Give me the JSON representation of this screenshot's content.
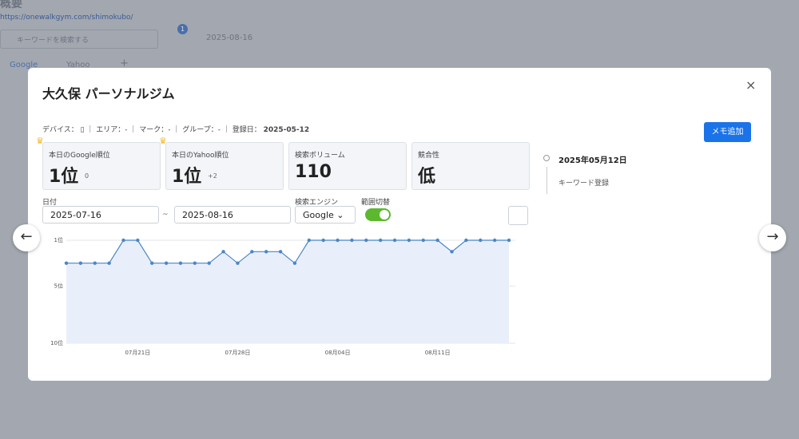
{
  "background": {
    "title": "概要",
    "url": "https://onewalkgym.com/shimokubo/",
    "search_placeholder": "キーワードを検索する",
    "filter_badge": "1",
    "date": "2025-08-16",
    "tabs": [
      "Google",
      "Yahoo",
      "+"
    ]
  },
  "modal": {
    "title": "大久保 パーソナルジム",
    "info": {
      "device_label": "デバイス：",
      "area": "エリア：-",
      "mark": "マーク：-",
      "group": "グループ：-",
      "registered_label": "登録日：",
      "registered_date": "2025-05-12"
    },
    "memo_button": "メモ追加",
    "cards": [
      {
        "label": "本日のGoogle順位",
        "value": "1位",
        "change": "0"
      },
      {
        "label": "本日のYahoo順位",
        "value": "1位",
        "change": "+2"
      },
      {
        "label": "検索ボリューム",
        "value": 110
      },
      {
        "label": "競合性",
        "value": "低"
      }
    ],
    "filters": {
      "date_label": "日付",
      "start": "2025-07-16",
      "separator": "~",
      "end": "2025-08-16",
      "engine_label": "検索エンジン",
      "engine": "Google",
      "range_label": "範囲切替"
    },
    "timeline": [
      {
        "date": "2025年05月12日",
        "event": "キーワード登録"
      }
    ]
  },
  "chart_data": {
    "type": "line",
    "color": "#4a86c8",
    "area_color": "#e9effa",
    "y_inverted": true,
    "grid": true,
    "categories": [
      null,
      null,
      null,
      null,
      null,
      "07月21日",
      null,
      null,
      null,
      null,
      null,
      null,
      "07月28日",
      null,
      null,
      null,
      null,
      null,
      null,
      "08月04日",
      null,
      null,
      null,
      null,
      null,
      null,
      "08月11日",
      null,
      null,
      null,
      null,
      null
    ],
    "values": [
      3,
      3,
      3,
      3,
      1,
      1,
      3,
      3,
      3,
      3,
      3,
      2,
      3,
      2,
      2,
      2,
      3,
      1,
      1,
      1,
      1,
      1,
      1,
      1,
      1,
      1,
      1,
      2,
      1,
      1,
      1,
      1
    ],
    "ylim": [
      1,
      10
    ],
    "yticks": [
      {
        "value": 1,
        "label": "1位"
      },
      {
        "value": 5,
        "label": "5位"
      },
      {
        "value": 10,
        "label": "10位"
      }
    ]
  }
}
